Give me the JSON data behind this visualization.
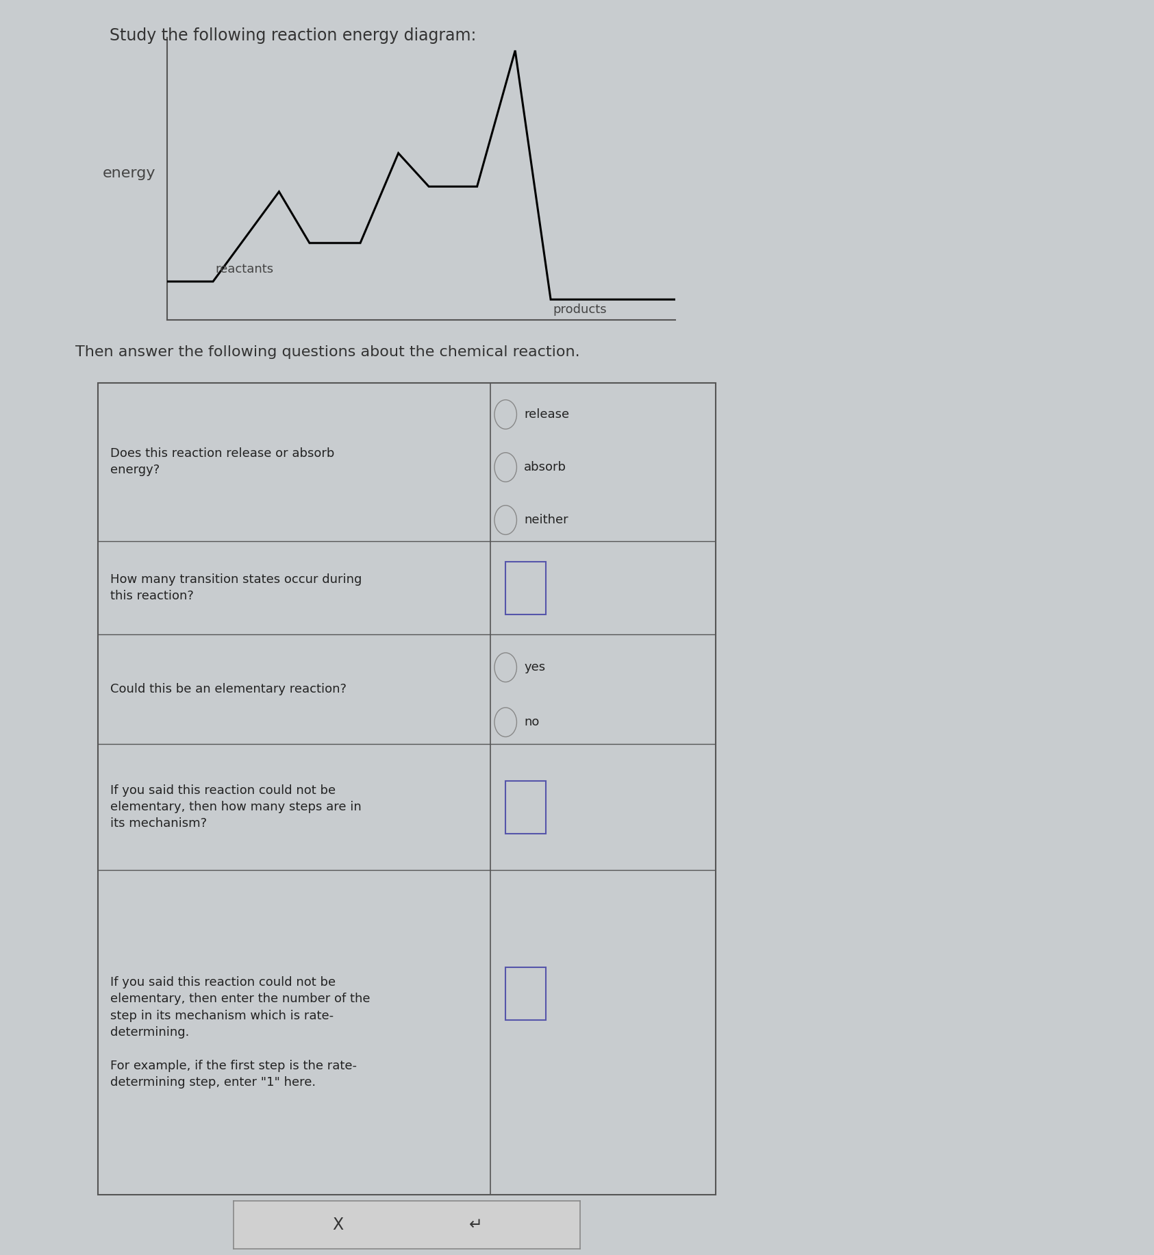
{
  "title": "Study the following reaction energy diagram:",
  "subtitle": "Then answer the following questions about the chemical reaction.",
  "background_color": "#c8cccf",
  "chart_bg": "#c8cccf",
  "curve_color": "#000000",
  "curve_linewidth": 2.2,
  "energy_label": "energy",
  "reactants_label": "reactants",
  "products_label": "products",
  "questions_text": [
    "Does this reaction release or absorb\nenergy?",
    "How many transition states occur during\nthis reaction?",
    "Could this be an elementary reaction?",
    "If you said this reaction could not be\nelementary, then how many steps are in\nits mechanism?",
    "If you said this reaction could not be\nelementary, then enter the number of the\nstep in its mechanism which is rate-\ndetermining.\n\nFor example, if the first step is the rate-\ndetermining step, enter \"1\" here."
  ],
  "radio_row0": [
    "release",
    "absorb",
    "neither"
  ],
  "radio_row2": [
    "yes",
    "no"
  ],
  "button_x_label": "X",
  "button_undo_label": "↵",
  "title_fontsize": 17,
  "subtitle_fontsize": 16,
  "question_fontsize": 13,
  "answer_fontsize": 13
}
